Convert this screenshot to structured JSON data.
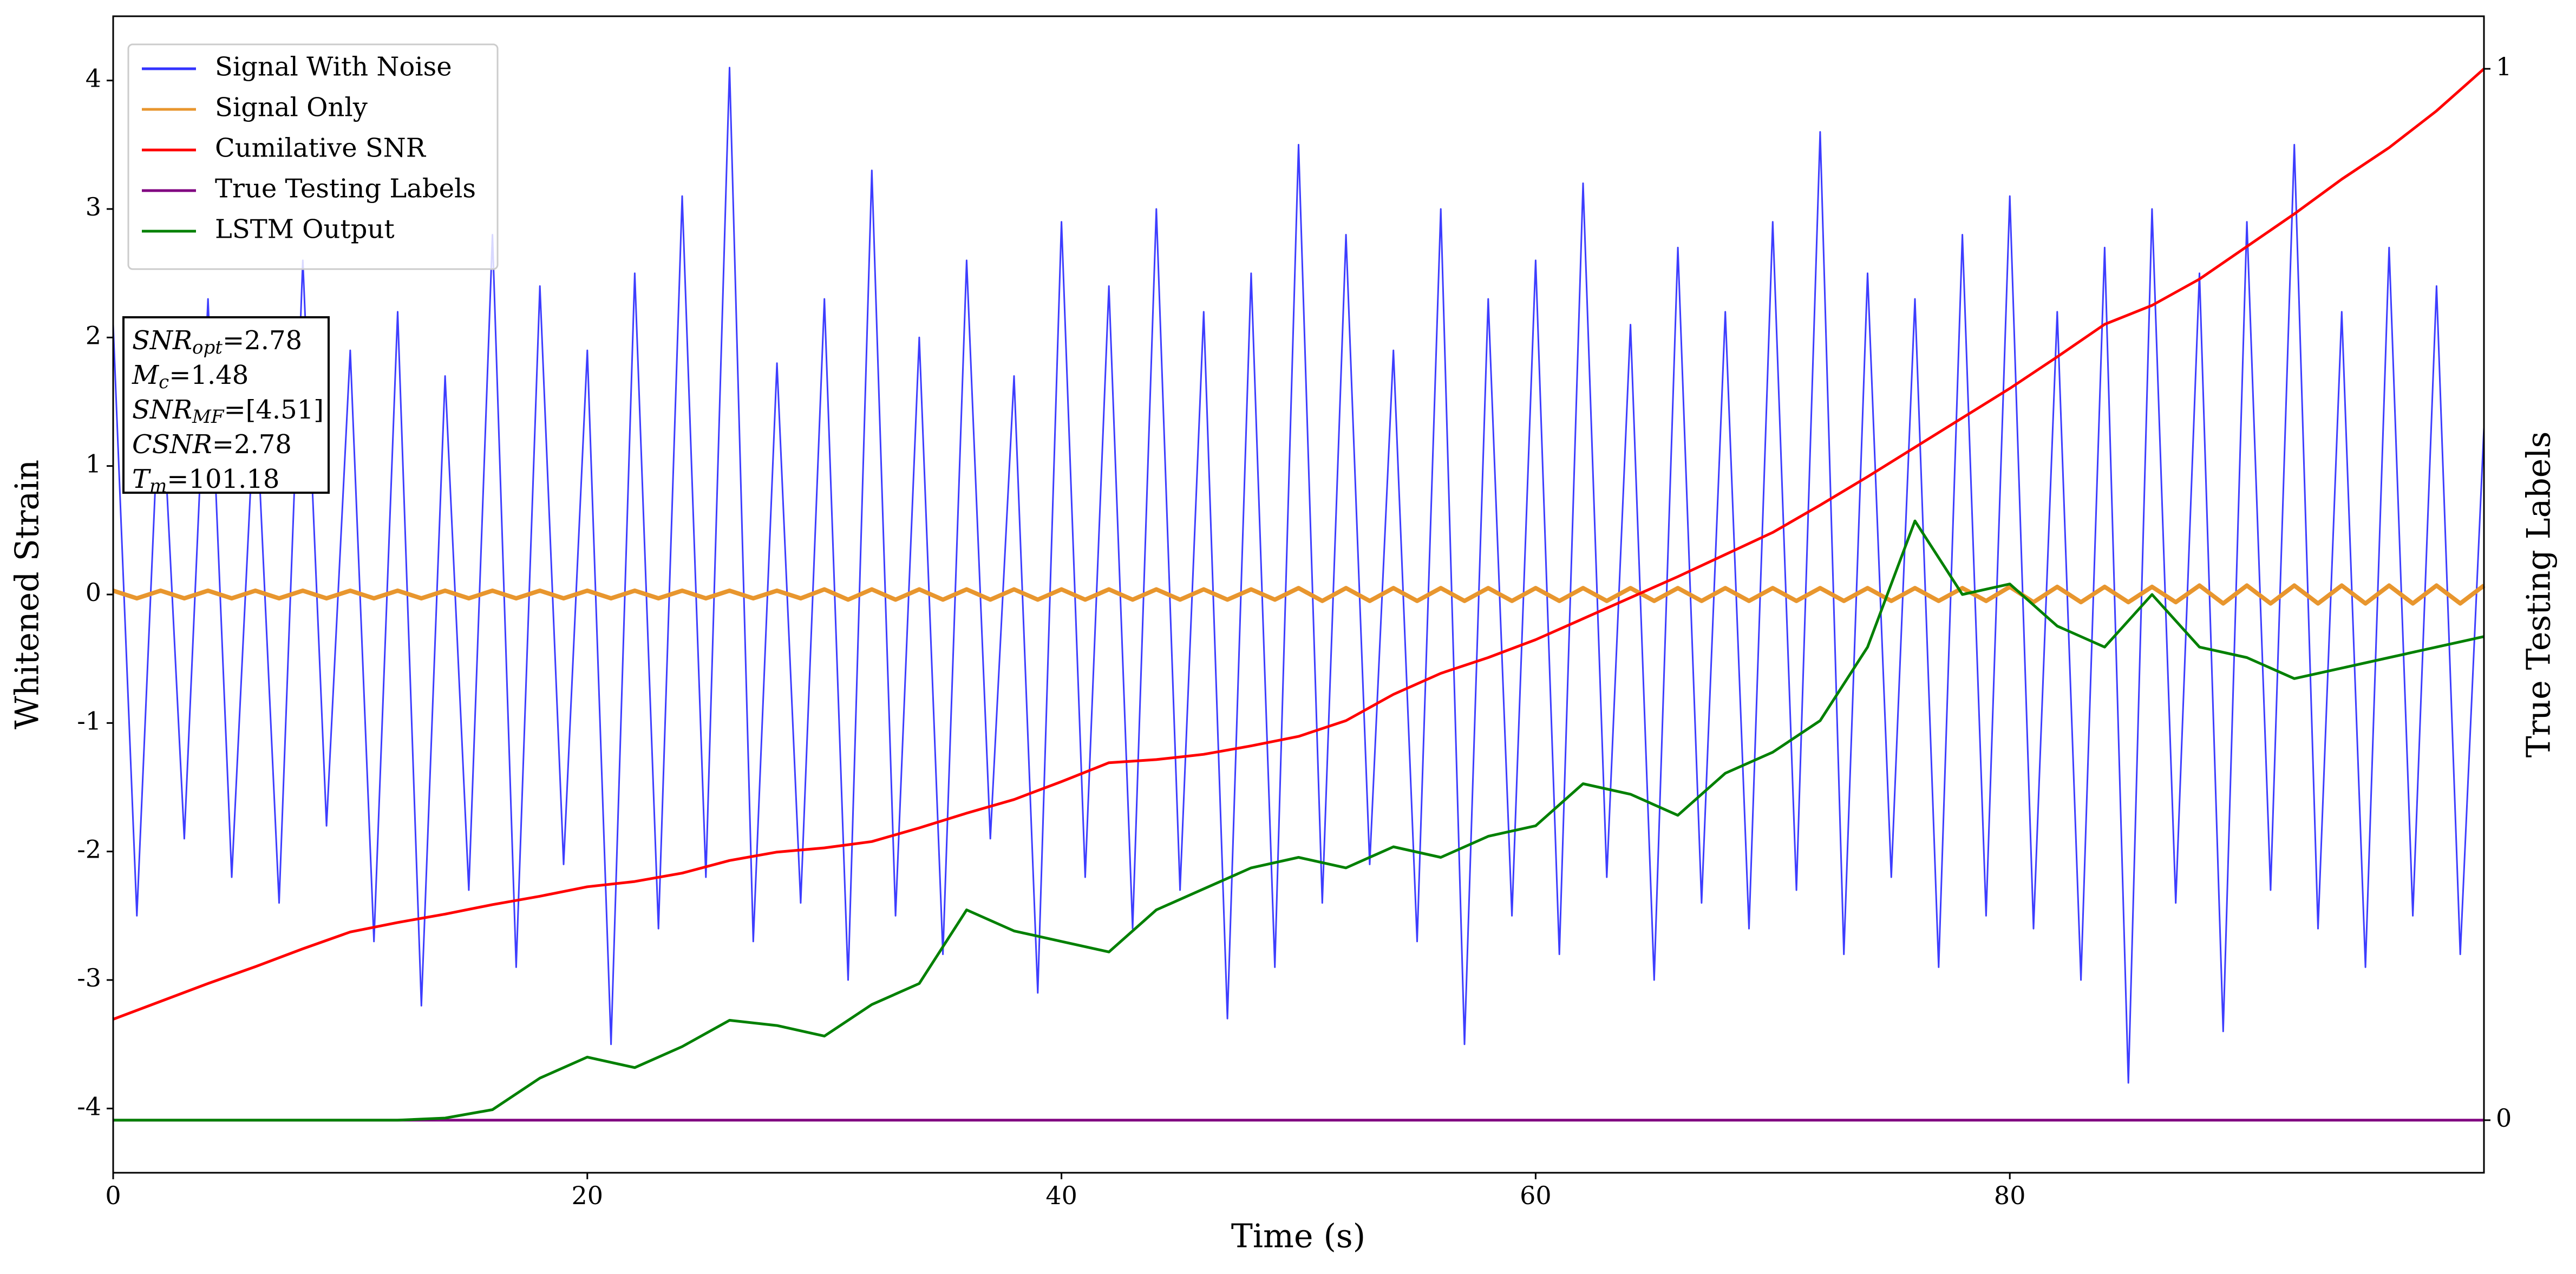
{
  "chart_data": {
    "type": "line",
    "xlabel": "Time (s)",
    "ylabel": "Whitened Strain",
    "y2label": "True Testing Labels",
    "xlim": [
      0,
      100
    ],
    "xticks": [
      0,
      20,
      40,
      60,
      80
    ],
    "ylim": [
      -4.5,
      4.5
    ],
    "yticks": [
      -4,
      -3,
      -2,
      -1,
      0,
      1,
      2,
      3,
      4
    ],
    "y2lim": [
      -0.05,
      1.05
    ],
    "y2ticks": [
      0,
      1
    ],
    "grid": false,
    "legend": "upper left",
    "annotations": [
      {
        "symbol": "SNR",
        "sub": "opt",
        "rest": "=2.78"
      },
      {
        "symbol": "M",
        "sub": "c",
        "rest": "=1.48"
      },
      {
        "symbol": "SNR",
        "sub": "MF",
        "rest": "=[4.51]"
      },
      {
        "symbol": "CSNR",
        "sub": "",
        "rest": "=2.78"
      },
      {
        "symbol": "T",
        "sub": "m",
        "rest": "=101.18"
      }
    ],
    "series": [
      {
        "name": "Signal With Noise",
        "color": "#3333ff",
        "x": [
          0,
          1,
          2,
          3,
          4,
          5,
          6,
          7,
          8,
          9,
          10,
          11,
          12,
          13,
          14,
          15,
          16,
          17,
          18,
          19,
          20,
          21,
          22,
          23,
          24,
          25,
          26,
          27,
          28,
          29,
          30,
          31,
          32,
          33,
          34,
          35,
          36,
          37,
          38,
          39,
          40,
          41,
          42,
          43,
          44,
          45,
          46,
          47,
          48,
          49,
          50,
          51,
          52,
          53,
          54,
          55,
          56,
          57,
          58,
          59,
          60,
          61,
          62,
          63,
          64,
          65,
          66,
          67,
          68,
          69,
          70,
          71,
          72,
          73,
          74,
          75,
          76,
          77,
          78,
          79,
          80,
          81,
          82,
          83,
          84,
          85,
          86,
          87,
          88,
          89,
          90,
          91,
          92,
          93,
          94,
          95,
          96,
          97,
          98,
          99,
          100
        ],
        "values": [
          2.1,
          -2.5,
          1.8,
          -1.9,
          2.3,
          -2.2,
          1.6,
          -2.4,
          2.6,
          -1.8,
          1.9,
          -2.7,
          2.2,
          -3.2,
          1.7,
          -2.3,
          2.8,
          -2.9,
          2.4,
          -2.1,
          1.9,
          -3.5,
          2.5,
          -2.6,
          3.1,
          -2.2,
          4.1,
          -2.7,
          1.8,
          -2.4,
          2.3,
          -3.0,
          3.3,
          -2.5,
          2.0,
          -2.8,
          2.6,
          -1.9,
          1.7,
          -3.1,
          2.9,
          -2.2,
          2.4,
          -2.6,
          3.0,
          -2.3,
          2.2,
          -3.3,
          2.5,
          -2.9,
          3.5,
          -2.4,
          2.8,
          -2.1,
          1.9,
          -2.7,
          3.0,
          -3.5,
          2.3,
          -2.5,
          2.6,
          -2.8,
          3.2,
          -2.2,
          2.1,
          -3.0,
          2.7,
          -2.4,
          2.2,
          -2.6,
          2.9,
          -2.3,
          3.6,
          -2.8,
          2.5,
          -2.2,
          2.3,
          -2.9,
          2.8,
          -2.5,
          3.1,
          -2.6,
          2.2,
          -3.0,
          2.7,
          -3.8,
          3.0,
          -2.4,
          2.5,
          -3.4,
          2.9,
          -2.3,
          3.5,
          -2.6,
          2.2,
          -2.9,
          2.7,
          -2.5,
          2.4,
          -2.8,
          1.3
        ]
      },
      {
        "name": "Signal Only",
        "color": "#e8962e",
        "x": [
          0,
          1,
          2,
          3,
          4,
          5,
          6,
          7,
          8,
          9,
          10,
          11,
          12,
          13,
          14,
          15,
          16,
          17,
          18,
          19,
          20,
          21,
          22,
          23,
          24,
          25,
          26,
          27,
          28,
          29,
          30,
          31,
          32,
          33,
          34,
          35,
          36,
          37,
          38,
          39,
          40,
          41,
          42,
          43,
          44,
          45,
          46,
          47,
          48,
          49,
          50,
          51,
          52,
          53,
          54,
          55,
          56,
          57,
          58,
          59,
          60,
          61,
          62,
          63,
          64,
          65,
          66,
          67,
          68,
          69,
          70,
          71,
          72,
          73,
          74,
          75,
          76,
          77,
          78,
          79,
          80,
          81,
          82,
          83,
          84,
          85,
          86,
          87,
          88,
          89,
          90,
          91,
          92,
          93,
          94,
          95,
          96,
          97,
          98,
          99,
          100
        ],
        "values": [
          0.03,
          -0.03,
          0.03,
          -0.03,
          0.03,
          -0.03,
          0.03,
          -0.03,
          0.03,
          -0.03,
          0.03,
          -0.03,
          0.03,
          -0.03,
          0.03,
          -0.03,
          0.03,
          -0.03,
          0.03,
          -0.03,
          0.03,
          -0.03,
          0.03,
          -0.03,
          0.03,
          -0.03,
          0.03,
          -0.03,
          0.03,
          -0.03,
          0.04,
          -0.04,
          0.04,
          -0.04,
          0.04,
          -0.04,
          0.04,
          -0.04,
          0.04,
          -0.04,
          0.04,
          -0.04,
          0.04,
          -0.04,
          0.04,
          -0.04,
          0.04,
          -0.04,
          0.04,
          -0.04,
          0.05,
          -0.05,
          0.05,
          -0.05,
          0.05,
          -0.05,
          0.05,
          -0.05,
          0.05,
          -0.05,
          0.05,
          -0.05,
          0.05,
          -0.05,
          0.05,
          -0.05,
          0.05,
          -0.05,
          0.05,
          -0.05,
          0.05,
          -0.05,
          0.05,
          -0.05,
          0.05,
          -0.05,
          0.05,
          -0.05,
          0.05,
          -0.05,
          0.06,
          -0.06,
          0.06,
          -0.06,
          0.06,
          -0.06,
          0.06,
          -0.06,
          0.07,
          -0.07,
          0.07,
          -0.07,
          0.07,
          -0.07,
          0.07,
          -0.07,
          0.07,
          -0.07,
          0.07,
          -0.07,
          0.07
        ]
      },
      {
        "name": "Cumilative SNR",
        "color": "#ff0000",
        "axis": "y2",
        "x": [
          0,
          2,
          4,
          6,
          8,
          10,
          12,
          14,
          16,
          18,
          20,
          22,
          24,
          26,
          28,
          30,
          32,
          34,
          36,
          38,
          40,
          42,
          44,
          46,
          48,
          50,
          52,
          54,
          56,
          58,
          60,
          62,
          64,
          66,
          68,
          70,
          72,
          74,
          76,
          78,
          80,
          82,
          84,
          86,
          88,
          90,
          92,
          94,
          96,
          98,
          100
        ],
        "values": [
          0.096,
          0.113,
          0.13,
          0.146,
          0.163,
          0.179,
          0.188,
          0.196,
          0.205,
          0.213,
          0.222,
          0.227,
          0.235,
          0.247,
          0.255,
          0.259,
          0.265,
          0.278,
          0.292,
          0.305,
          0.322,
          0.34,
          0.343,
          0.348,
          0.356,
          0.365,
          0.38,
          0.405,
          0.425,
          0.44,
          0.457,
          0.477,
          0.497,
          0.517,
          0.538,
          0.559,
          0.585,
          0.612,
          0.64,
          0.668,
          0.696,
          0.726,
          0.757,
          0.775,
          0.8,
          0.831,
          0.862,
          0.895,
          0.925,
          0.96,
          1.0
        ]
      },
      {
        "name": "True Testing Labels",
        "color": "#800080",
        "axis": "y2",
        "x": [
          0,
          2,
          4,
          6,
          8,
          10,
          12,
          14,
          16,
          18,
          20,
          22,
          24,
          26,
          28,
          30,
          32,
          34,
          36,
          38,
          40,
          42,
          44,
          46,
          48,
          50,
          52,
          54,
          56,
          58,
          60,
          62,
          64,
          66,
          68,
          70,
          72,
          74,
          76,
          78,
          80,
          82,
          84,
          86,
          88,
          90,
          92,
          94,
          96,
          98,
          100
        ],
        "values": [
          0,
          0,
          0,
          0,
          0,
          0,
          0,
          0,
          0,
          0,
          0,
          0,
          0,
          0,
          0,
          0,
          0,
          0,
          0,
          0,
          0,
          0,
          0,
          0,
          0,
          0,
          0,
          0,
          0,
          0,
          0,
          0,
          0,
          0,
          0,
          0,
          0,
          0,
          0,
          0,
          0,
          0,
          0,
          0,
          0,
          0,
          0,
          0,
          0,
          0,
          0
        ]
      },
      {
        "name": "LSTM Output",
        "color": "#008000",
        "axis": "y2",
        "x": [
          0,
          2,
          4,
          6,
          8,
          10,
          12,
          14,
          16,
          18,
          20,
          22,
          24,
          26,
          28,
          30,
          32,
          34,
          36,
          38,
          40,
          42,
          44,
          46,
          48,
          50,
          52,
          54,
          56,
          58,
          60,
          62,
          64,
          66,
          68,
          70,
          72,
          74,
          76,
          78,
          80,
          82,
          84,
          86,
          88,
          90,
          92,
          94,
          96,
          98,
          100
        ],
        "values": [
          0,
          0,
          0,
          0,
          0,
          0,
          0,
          0.002,
          0.01,
          0.04,
          0.06,
          0.05,
          0.07,
          0.095,
          0.09,
          0.08,
          0.11,
          0.13,
          0.2,
          0.18,
          0.17,
          0.16,
          0.2,
          0.22,
          0.24,
          0.25,
          0.24,
          0.26,
          0.25,
          0.27,
          0.28,
          0.32,
          0.31,
          0.29,
          0.33,
          0.35,
          0.38,
          0.45,
          0.57,
          0.5,
          0.51,
          0.47,
          0.45,
          0.5,
          0.45,
          0.44,
          0.42,
          0.43,
          0.44,
          0.45,
          0.46
        ]
      }
    ]
  }
}
